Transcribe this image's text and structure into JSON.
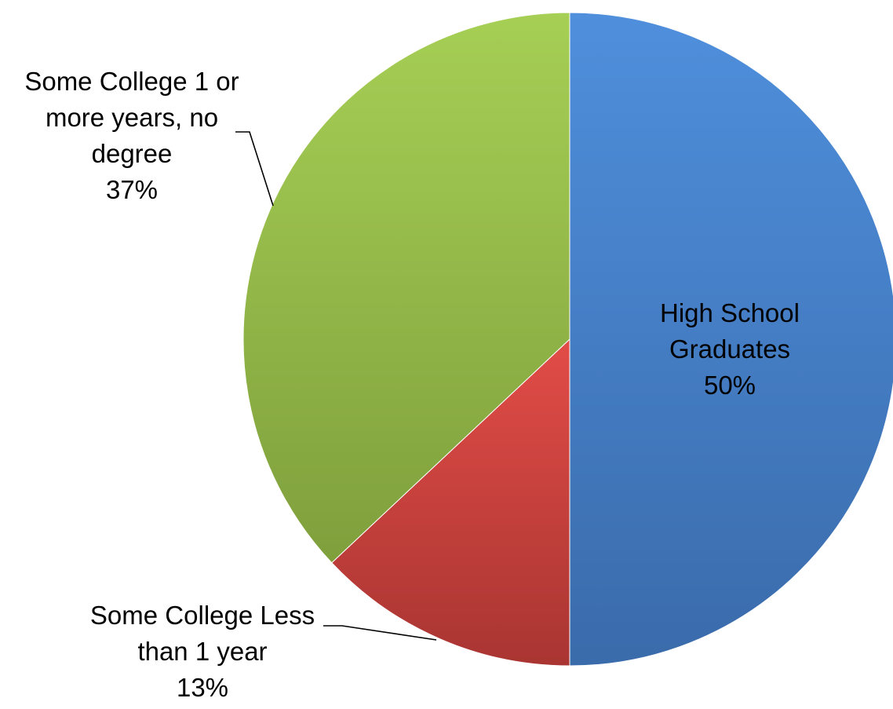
{
  "chart_data": {
    "type": "pie",
    "title": "",
    "slices": [
      {
        "label": "High School Graduates",
        "label_lines": [
          "High School",
          "Graduates"
        ],
        "value": 50,
        "value_label": "50%",
        "color": "#4a86d0"
      },
      {
        "label": "Some College Less than 1 year",
        "label_lines": [
          "Some College Less",
          "than 1 year"
        ],
        "value": 13,
        "value_label": "13%",
        "color": "#c9413d"
      },
      {
        "label": "Some College 1 or more years, no degree",
        "label_lines": [
          "Some College 1 or",
          "more years, no",
          "degree"
        ],
        "value": 37,
        "value_label": "37%",
        "color": "#95b94a"
      }
    ],
    "legend": "none"
  }
}
